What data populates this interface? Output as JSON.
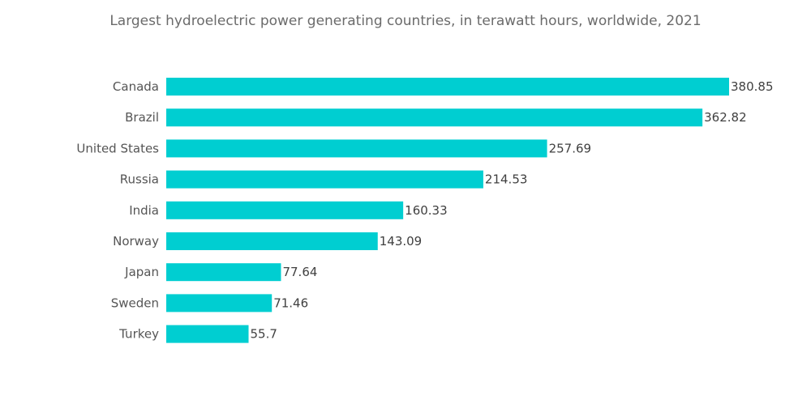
{
  "chart_data": {
    "type": "bar",
    "orientation": "horizontal",
    "title": "Largest hydroelectric power generating countries, in terawatt hours, worldwide, 2021",
    "categories": [
      "Canada",
      "Brazil",
      "United States",
      "Russia",
      "India",
      "Norway",
      "Japan",
      "Sweden",
      "Turkey"
    ],
    "values": [
      380.85,
      362.82,
      257.69,
      214.53,
      160.33,
      143.09,
      77.64,
      71.46,
      55.7
    ],
    "value_labels": [
      "380.85",
      "362.82",
      "257.69",
      "214.53",
      "160.33",
      "143.09",
      "77.64",
      "71.46",
      "55.7"
    ],
    "xlim": [
      0,
      380.85
    ],
    "grid": false,
    "bar_color": "#00ced1"
  }
}
